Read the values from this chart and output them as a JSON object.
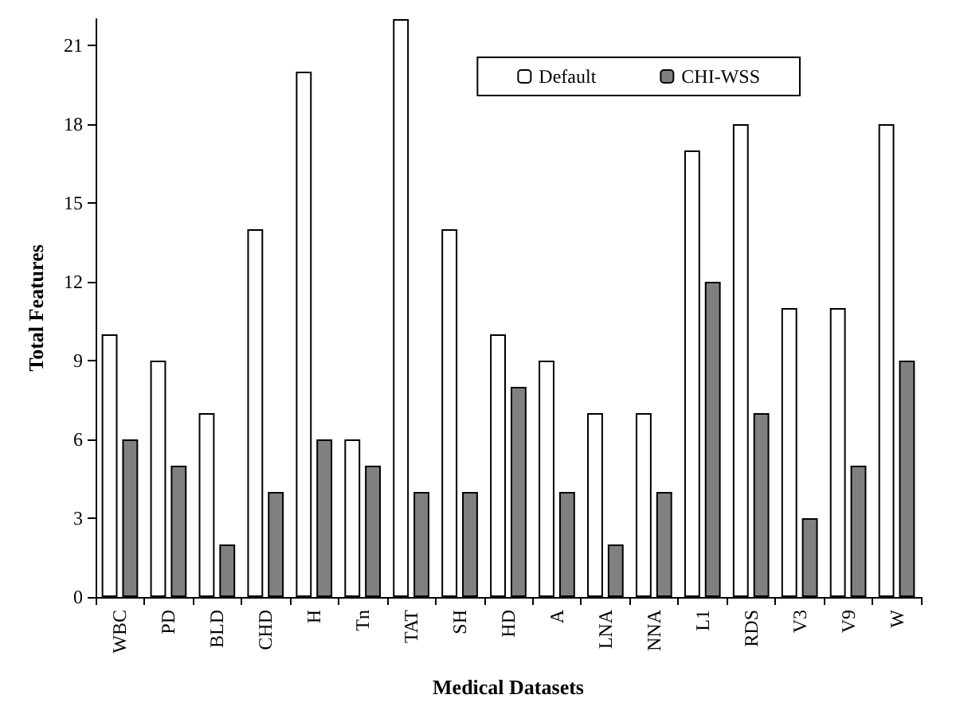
{
  "chart_data": {
    "type": "bar",
    "xlabel": "Medical Datasets",
    "ylabel": "Total Features",
    "categories": [
      "WBC",
      "PD",
      "BLD",
      "CHD",
      "H",
      "Tn",
      "TAT",
      "SH",
      "HD",
      "A",
      "LNA",
      "NNA",
      "L1",
      "RDS",
      "V3",
      "V9",
      "W"
    ],
    "series": [
      {
        "name": "Default",
        "color": "#ffffff",
        "values": [
          10,
          9,
          7,
          14,
          20,
          6,
          22,
          14,
          10,
          9,
          7,
          7,
          17,
          18,
          11,
          11,
          18
        ]
      },
      {
        "name": "CHI-WSS",
        "color": "#808080",
        "values": [
          6,
          5,
          2,
          4,
          6,
          5,
          4,
          4,
          8,
          4,
          2,
          4,
          12,
          7,
          3,
          5,
          9
        ]
      }
    ],
    "ylim": [
      0,
      22
    ],
    "yticks": [
      0,
      3,
      6,
      9,
      12,
      15,
      18,
      21
    ],
    "grid": false,
    "legend": "top right"
  }
}
